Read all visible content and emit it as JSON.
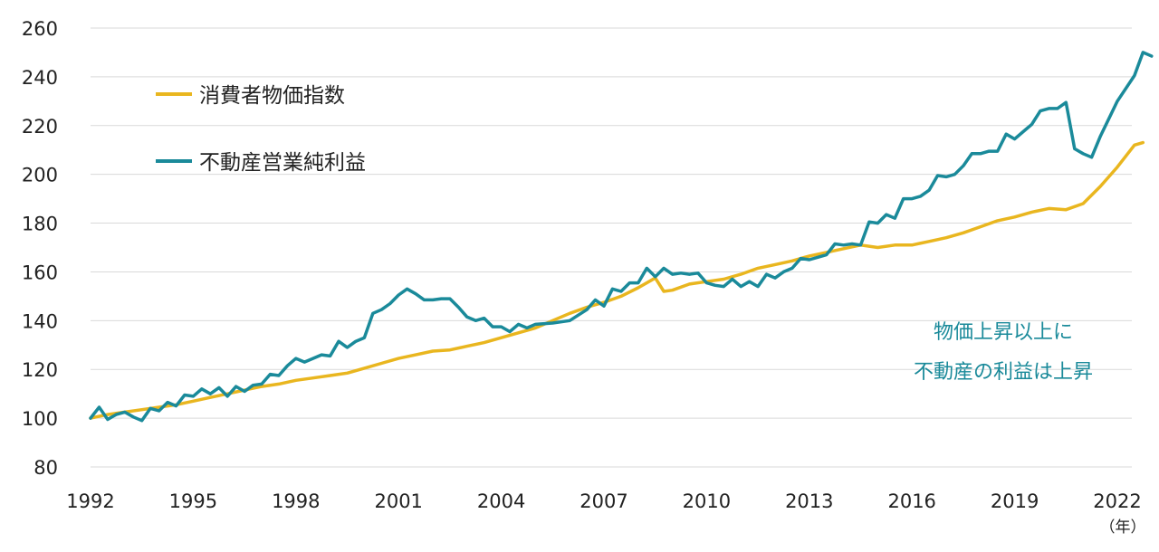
{
  "chart_data": {
    "type": "line",
    "title": "",
    "xlabel": "",
    "ylabel": "",
    "x_unit_label": "（年）",
    "xlim": [
      1992,
      2023
    ],
    "ylim": [
      80,
      260
    ],
    "yticks": [
      80,
      100,
      120,
      140,
      160,
      180,
      200,
      220,
      240,
      260
    ],
    "xticks": [
      1992,
      1995,
      1998,
      2001,
      2004,
      2007,
      2010,
      2013,
      2016,
      2019,
      2022
    ],
    "grid": "horizontal",
    "legend_position": "top-left",
    "annotation": [
      "物価上昇以上に",
      "不動産の利益は上昇"
    ],
    "annotation_color": "#1A8A9A",
    "series": [
      {
        "name": "消費者物価指数",
        "color": "#E9B61F",
        "points": [
          [
            1992.0,
            100
          ],
          [
            1992.5,
            101.5
          ],
          [
            1993.0,
            102.5
          ],
          [
            1993.5,
            103.5
          ],
          [
            1994.0,
            104.5
          ],
          [
            1994.5,
            105.5
          ],
          [
            1995.0,
            107
          ],
          [
            1995.5,
            108.5
          ],
          [
            1996.0,
            110
          ],
          [
            1996.5,
            111.5
          ],
          [
            1997.0,
            113
          ],
          [
            1997.5,
            114
          ],
          [
            1998.0,
            115.5
          ],
          [
            1998.5,
            116.5
          ],
          [
            1999.0,
            117.5
          ],
          [
            1999.5,
            118.5
          ],
          [
            2000.0,
            120.5
          ],
          [
            2000.5,
            122.5
          ],
          [
            2001.0,
            124.5
          ],
          [
            2001.5,
            126
          ],
          [
            2002.0,
            127.5
          ],
          [
            2002.5,
            128
          ],
          [
            2003.0,
            129.5
          ],
          [
            2003.5,
            131
          ],
          [
            2004.0,
            133
          ],
          [
            2004.5,
            135
          ],
          [
            2005.0,
            137
          ],
          [
            2005.5,
            140
          ],
          [
            2006.0,
            143
          ],
          [
            2006.5,
            145.5
          ],
          [
            2007.0,
            147.5
          ],
          [
            2007.5,
            150
          ],
          [
            2008.0,
            153.5
          ],
          [
            2008.5,
            157.5
          ],
          [
            2008.75,
            152
          ],
          [
            2009.0,
            152.5
          ],
          [
            2009.5,
            155
          ],
          [
            2010.0,
            156
          ],
          [
            2010.5,
            157
          ],
          [
            2011.0,
            159
          ],
          [
            2011.5,
            161.5
          ],
          [
            2012.0,
            163
          ],
          [
            2012.5,
            164.5
          ],
          [
            2013.0,
            166.5
          ],
          [
            2013.5,
            168
          ],
          [
            2014.0,
            169.5
          ],
          [
            2014.5,
            171
          ],
          [
            2015.0,
            170
          ],
          [
            2015.5,
            171
          ],
          [
            2016.0,
            171
          ],
          [
            2016.5,
            172.5
          ],
          [
            2017.0,
            174
          ],
          [
            2017.5,
            176
          ],
          [
            2018.0,
            178.5
          ],
          [
            2018.5,
            181
          ],
          [
            2019.0,
            182.5
          ],
          [
            2019.5,
            184.5
          ],
          [
            2020.0,
            186
          ],
          [
            2020.5,
            185.5
          ],
          [
            2021.0,
            188
          ],
          [
            2021.5,
            195
          ],
          [
            2022.0,
            203
          ],
          [
            2022.5,
            212
          ],
          [
            2022.75,
            213
          ]
        ]
      },
      {
        "name": "不動産営業純利益",
        "color": "#1A8A9A",
        "points": [
          [
            1992.0,
            100
          ],
          [
            1992.25,
            104.5
          ],
          [
            1992.5,
            99.5
          ],
          [
            1992.75,
            101.5
          ],
          [
            1993.0,
            102.5
          ],
          [
            1993.25,
            100.5
          ],
          [
            1993.5,
            99
          ],
          [
            1993.75,
            104
          ],
          [
            1994.0,
            103
          ],
          [
            1994.25,
            106.5
          ],
          [
            1994.5,
            105
          ],
          [
            1994.75,
            109.5
          ],
          [
            1995.0,
            109
          ],
          [
            1995.25,
            112
          ],
          [
            1995.5,
            110
          ],
          [
            1995.75,
            112.5
          ],
          [
            1996.0,
            109
          ],
          [
            1996.25,
            113
          ],
          [
            1996.5,
            111
          ],
          [
            1996.75,
            113.5
          ],
          [
            1997.0,
            114
          ],
          [
            1997.25,
            118
          ],
          [
            1997.5,
            117.5
          ],
          [
            1997.75,
            121.5
          ],
          [
            1998.0,
            124.5
          ],
          [
            1998.25,
            123
          ],
          [
            1998.5,
            124.5
          ],
          [
            1998.75,
            126
          ],
          [
            1999.0,
            125.5
          ],
          [
            1999.25,
            131.5
          ],
          [
            1999.5,
            129
          ],
          [
            1999.75,
            131.5
          ],
          [
            2000.0,
            133
          ],
          [
            2000.25,
            143
          ],
          [
            2000.5,
            144.5
          ],
          [
            2000.75,
            147
          ],
          [
            2001.0,
            150.5
          ],
          [
            2001.25,
            153
          ],
          [
            2001.5,
            151
          ],
          [
            2001.75,
            148.5
          ],
          [
            2002.0,
            148.5
          ],
          [
            2002.25,
            149
          ],
          [
            2002.5,
            149
          ],
          [
            2002.75,
            145.5
          ],
          [
            2003.0,
            141.5
          ],
          [
            2003.25,
            140
          ],
          [
            2003.5,
            141
          ],
          [
            2003.75,
            137.5
          ],
          [
            2004.0,
            137.5
          ],
          [
            2004.25,
            135.5
          ],
          [
            2004.5,
            138.5
          ],
          [
            2004.75,
            137
          ],
          [
            2005.0,
            138.5
          ],
          [
            2005.5,
            139
          ],
          [
            2006.0,
            140
          ],
          [
            2006.5,
            144.5
          ],
          [
            2006.75,
            148.5
          ],
          [
            2007.0,
            146
          ],
          [
            2007.25,
            153
          ],
          [
            2007.5,
            152
          ],
          [
            2007.75,
            155.5
          ],
          [
            2008.0,
            155.5
          ],
          [
            2008.25,
            161.5
          ],
          [
            2008.5,
            158
          ],
          [
            2008.75,
            161.5
          ],
          [
            2009.0,
            159
          ],
          [
            2009.25,
            159.5
          ],
          [
            2009.5,
            159
          ],
          [
            2009.75,
            159.5
          ],
          [
            2010.0,
            155.5
          ],
          [
            2010.25,
            154.5
          ],
          [
            2010.5,
            154
          ],
          [
            2010.75,
            157
          ],
          [
            2011.0,
            154
          ],
          [
            2011.25,
            156
          ],
          [
            2011.5,
            154
          ],
          [
            2011.75,
            159
          ],
          [
            2012.0,
            157.5
          ],
          [
            2012.25,
            160
          ],
          [
            2012.5,
            161.5
          ],
          [
            2012.75,
            165.5
          ],
          [
            2013.0,
            165
          ],
          [
            2013.25,
            166
          ],
          [
            2013.5,
            167
          ],
          [
            2013.75,
            171.5
          ],
          [
            2014.0,
            171
          ],
          [
            2014.25,
            171.5
          ],
          [
            2014.5,
            171
          ],
          [
            2014.75,
            180.5
          ],
          [
            2015.0,
            180
          ],
          [
            2015.25,
            183.5
          ],
          [
            2015.5,
            182
          ],
          [
            2015.75,
            190
          ],
          [
            2016.0,
            190
          ],
          [
            2016.25,
            191
          ],
          [
            2016.5,
            193.5
          ],
          [
            2016.75,
            199.5
          ],
          [
            2017.0,
            199
          ],
          [
            2017.25,
            200
          ],
          [
            2017.5,
            203.5
          ],
          [
            2017.75,
            208.5
          ],
          [
            2018.0,
            208.5
          ],
          [
            2018.25,
            209.5
          ],
          [
            2018.5,
            209.5
          ],
          [
            2018.75,
            216.5
          ],
          [
            2019.0,
            214.5
          ],
          [
            2019.25,
            217.5
          ],
          [
            2019.5,
            220.5
          ],
          [
            2019.75,
            226
          ],
          [
            2020.0,
            227
          ],
          [
            2020.25,
            227
          ],
          [
            2020.5,
            229.5
          ],
          [
            2020.75,
            210.5
          ],
          [
            2021.0,
            208.5
          ],
          [
            2021.25,
            207
          ],
          [
            2021.5,
            215.5
          ],
          [
            2022.0,
            230
          ],
          [
            2022.5,
            240.5
          ],
          [
            2022.75,
            250
          ],
          [
            2023.0,
            248.5
          ]
        ]
      }
    ]
  }
}
